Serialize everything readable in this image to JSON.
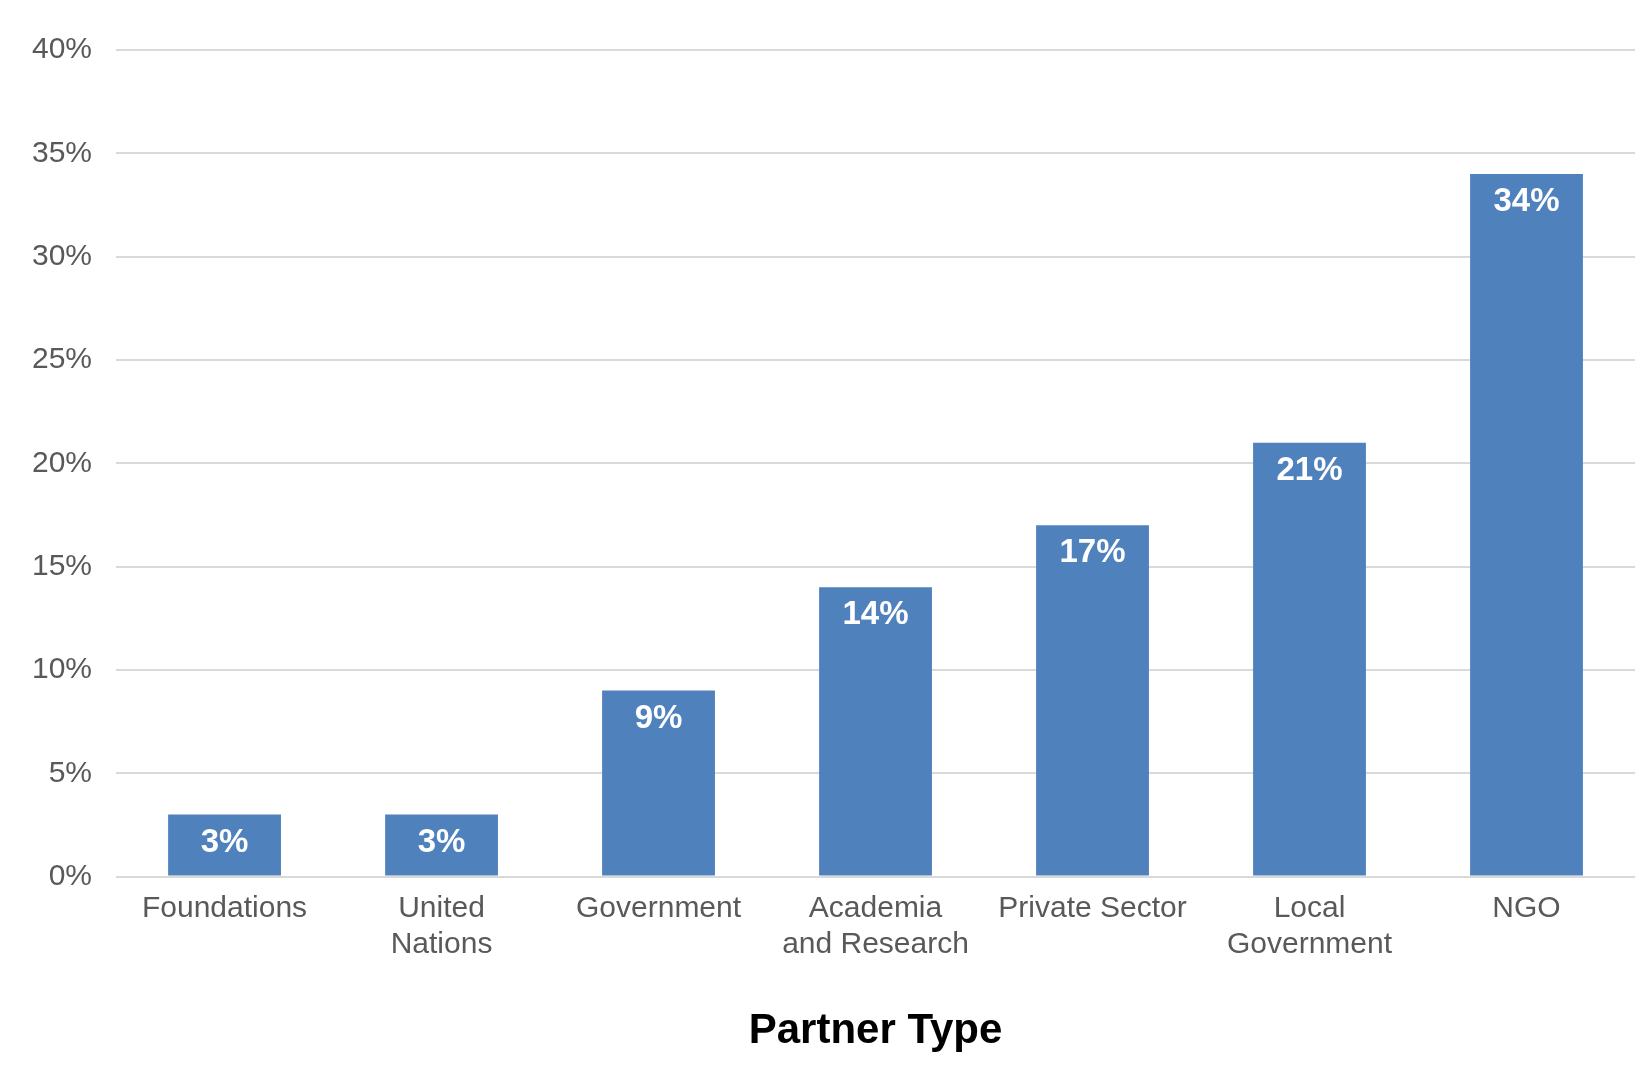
{
  "chart_data": {
    "type": "bar",
    "xlabel": "Partner Type",
    "categories": [
      "Foundations",
      "United Nations",
      "Government",
      "Academia and Research",
      "Private Sector",
      "Local Government",
      "NGO"
    ],
    "values": [
      3,
      3,
      9,
      14,
      17,
      21,
      34
    ],
    "color": "#4f81bd",
    "ylim": [
      0,
      40
    ],
    "yticks": [
      {
        "value": 0,
        "label": "0%"
      },
      {
        "value": 5,
        "label": "5%"
      },
      {
        "value": 10,
        "label": "10%"
      },
      {
        "value": 15,
        "label": "15%"
      },
      {
        "value": 20,
        "label": "20%"
      },
      {
        "value": 25,
        "label": "25%"
      },
      {
        "value": 30,
        "label": "30%"
      },
      {
        "value": 35,
        "label": "35%"
      },
      {
        "value": 40,
        "label": "40%"
      }
    ],
    "value_labels": [
      "3%",
      "3%",
      "9%",
      "14%",
      "17%",
      "21%",
      "34%"
    ],
    "grid": "y",
    "legend": false
  }
}
